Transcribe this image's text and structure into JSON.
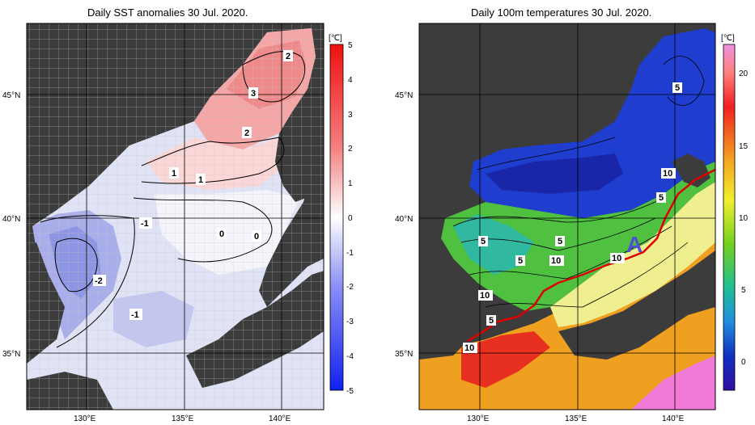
{
  "left_panel": {
    "title": "Daily SST anomalies 30 Jul. 2020.",
    "unit": "[℃]",
    "colorbar_ticks": [
      "5",
      "4",
      "3",
      "2",
      "1",
      "0",
      "-1",
      "-2",
      "-3",
      "-4",
      "-5"
    ],
    "contour_labels": [
      "2",
      "3",
      "2",
      "1",
      "1",
      "-1",
      "0",
      "0",
      "-2",
      "-1"
    ]
  },
  "right_panel": {
    "title": "Daily 100m temperatures 30 Jul. 2020.",
    "unit": "[℃]",
    "colorbar_ticks": [
      "20",
      "15",
      "10",
      "5",
      "0"
    ],
    "contour_labels": [
      "5",
      "10",
      "5",
      "5",
      "5",
      "5",
      "10",
      "10",
      "10",
      "5",
      "10"
    ],
    "marker_letter": "A"
  },
  "axes": {
    "lat_ticks": [
      "45°N",
      "40°N",
      "35°N"
    ],
    "lon_ticks": [
      "130°E",
      "135°E",
      "140°E"
    ]
  },
  "colors": {
    "land": "#3c3c3c",
    "anomaly_warm": "#f03030",
    "anomaly_cold": "#3040f0",
    "front_line": "#e00000",
    "marker": "#5050d0"
  }
}
